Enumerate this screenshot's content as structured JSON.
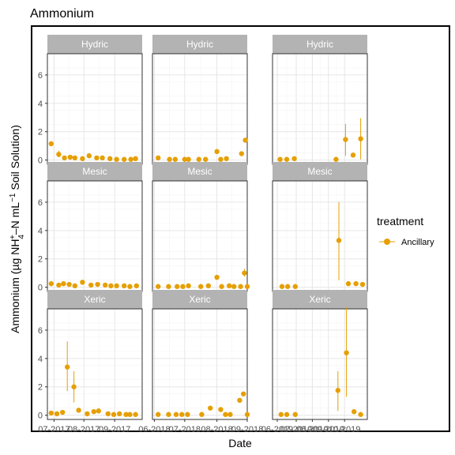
{
  "chart_data": {
    "type": "scatter",
    "title": "Ammonium",
    "xlabel": "Date",
    "ylabel": {
      "main": "Ammonium (µg NH",
      "sub": "4",
      "sup": "+",
      "mid": "–N mL",
      "sup2": "−1",
      "end": " Soil Solution)"
    },
    "ylim": [
      -0.3,
      7.5
    ],
    "yticks": [
      0,
      2,
      4,
      6
    ],
    "grid": true,
    "legend": {
      "title": "treatment",
      "position": "right",
      "entries": [
        "Ancillary"
      ]
    },
    "colors": {
      "series": "#E69F00",
      "strip": "#b3b3b3",
      "strip_text": "#ffffff",
      "grid": "#e6e6e6",
      "panel_border": "#333333"
    },
    "row_labels": [
      "Hydric",
      "Mesic",
      "Xeric"
    ],
    "columns": [
      {
        "xticks": [
          "07-2017",
          "08-2017",
          "09-2017"
        ],
        "xtick_pos": [
          0.07,
          0.385,
          0.71
        ]
      },
      {
        "xticks": [
          "06-2018",
          "07-2018",
          "08-2018",
          "09-2018"
        ],
        "xtick_pos": [
          0.02,
          0.34,
          0.68,
          1.0
        ]
      },
      {
        "xticks": [
          "06-2019",
          "07-2019",
          "08-2019",
          "09-2019",
          "10-2019"
        ],
        "xtick_pos": [
          0.05,
          0.25,
          0.42,
          0.59,
          0.76
        ]
      }
    ],
    "series": [
      {
        "name": "Ancillary",
        "panels": [
          {
            "row": 0,
            "col": 0,
            "points": [
              {
                "x": 0.04,
                "y": 1.15
              },
              {
                "x": 0.12,
                "y": 0.4,
                "lo": 0.2,
                "hi": 0.65
              },
              {
                "x": 0.18,
                "y": 0.15
              },
              {
                "x": 0.24,
                "y": 0.2
              },
              {
                "x": 0.29,
                "y": 0.15
              },
              {
                "x": 0.37,
                "y": 0.1
              },
              {
                "x": 0.44,
                "y": 0.3
              },
              {
                "x": 0.52,
                "y": 0.15
              },
              {
                "x": 0.58,
                "y": 0.15
              },
              {
                "x": 0.66,
                "y": 0.1
              },
              {
                "x": 0.73,
                "y": 0.05
              },
              {
                "x": 0.81,
                "y": 0.05
              },
              {
                "x": 0.88,
                "y": 0.05
              },
              {
                "x": 0.93,
                "y": 0.1
              }
            ]
          },
          {
            "row": 0,
            "col": 1,
            "points": [
              {
                "x": 0.06,
                "y": 0.15
              },
              {
                "x": 0.18,
                "y": 0.05
              },
              {
                "x": 0.24,
                "y": 0.05
              },
              {
                "x": 0.34,
                "y": 0.05
              },
              {
                "x": 0.38,
                "y": 0.05
              },
              {
                "x": 0.49,
                "y": 0.05
              },
              {
                "x": 0.56,
                "y": 0.05
              },
              {
                "x": 0.68,
                "y": 0.6
              },
              {
                "x": 0.72,
                "y": 0.05
              },
              {
                "x": 0.78,
                "y": 0.1
              },
              {
                "x": 0.94,
                "y": 0.45
              },
              {
                "x": 0.98,
                "y": 1.4
              }
            ]
          },
          {
            "row": 0,
            "col": 2,
            "points": [
              {
                "x": 0.08,
                "y": 0.05
              },
              {
                "x": 0.15,
                "y": 0.05
              },
              {
                "x": 0.23,
                "y": 0.1
              },
              {
                "x": 0.67,
                "y": 0.05
              },
              {
                "x": 0.77,
                "y": 1.45,
                "lo": 0.3,
                "hi": 2.55
              },
              {
                "x": 0.85,
                "y": 0.35
              },
              {
                "x": 0.93,
                "y": 1.5,
                "lo": 0.05,
                "hi": 2.95
              }
            ]
          },
          {
            "row": 1,
            "col": 0,
            "points": [
              {
                "x": 0.04,
                "y": 0.25
              },
              {
                "x": 0.12,
                "y": 0.15
              },
              {
                "x": 0.17,
                "y": 0.25
              },
              {
                "x": 0.23,
                "y": 0.2
              },
              {
                "x": 0.29,
                "y": 0.1
              },
              {
                "x": 0.37,
                "y": 0.35
              },
              {
                "x": 0.46,
                "y": 0.15
              },
              {
                "x": 0.53,
                "y": 0.2
              },
              {
                "x": 0.61,
                "y": 0.15
              },
              {
                "x": 0.67,
                "y": 0.1
              },
              {
                "x": 0.73,
                "y": 0.1
              },
              {
                "x": 0.81,
                "y": 0.1
              },
              {
                "x": 0.87,
                "y": 0.05
              },
              {
                "x": 0.94,
                "y": 0.1
              }
            ]
          },
          {
            "row": 1,
            "col": 1,
            "points": [
              {
                "x": 0.06,
                "y": 0.05
              },
              {
                "x": 0.17,
                "y": 0.05
              },
              {
                "x": 0.26,
                "y": 0.05
              },
              {
                "x": 0.32,
                "y": 0.05
              },
              {
                "x": 0.38,
                "y": 0.1
              },
              {
                "x": 0.51,
                "y": 0.05
              },
              {
                "x": 0.59,
                "y": 0.1
              },
              {
                "x": 0.68,
                "y": 0.7
              },
              {
                "x": 0.73,
                "y": 0.05
              },
              {
                "x": 0.81,
                "y": 0.1
              },
              {
                "x": 0.86,
                "y": 0.05
              },
              {
                "x": 0.93,
                "y": 0.05
              },
              {
                "x": 0.97,
                "y": 1.0,
                "lo": 0.75,
                "hi": 1.3
              },
              {
                "x": 1.0,
                "y": 0.05
              }
            ]
          },
          {
            "row": 1,
            "col": 2,
            "points": [
              {
                "x": 0.1,
                "y": 0.05
              },
              {
                "x": 0.16,
                "y": 0.05
              },
              {
                "x": 0.24,
                "y": 0.05
              },
              {
                "x": 0.7,
                "y": 3.3,
                "lo": 0.5,
                "hi": 6.0
              },
              {
                "x": 0.8,
                "y": 0.25
              },
              {
                "x": 0.88,
                "y": 0.25
              },
              {
                "x": 0.95,
                "y": 0.2
              }
            ]
          },
          {
            "row": 2,
            "col": 0,
            "points": [
              {
                "x": 0.04,
                "y": 0.15
              },
              {
                "x": 0.1,
                "y": 0.1
              },
              {
                "x": 0.16,
                "y": 0.2
              },
              {
                "x": 0.21,
                "y": 3.4,
                "lo": 1.7,
                "hi": 5.2
              },
              {
                "x": 0.28,
                "y": 2.0,
                "lo": 0.9,
                "hi": 3.1
              },
              {
                "x": 0.33,
                "y": 0.35
              },
              {
                "x": 0.42,
                "y": 0.1
              },
              {
                "x": 0.49,
                "y": 0.25
              },
              {
                "x": 0.54,
                "y": 0.3
              },
              {
                "x": 0.64,
                "y": 0.1
              },
              {
                "x": 0.7,
                "y": 0.05
              },
              {
                "x": 0.76,
                "y": 0.1
              },
              {
                "x": 0.83,
                "y": 0.05
              },
              {
                "x": 0.87,
                "y": 0.05
              },
              {
                "x": 0.93,
                "y": 0.05
              }
            ]
          },
          {
            "row": 2,
            "col": 1,
            "points": [
              {
                "x": 0.06,
                "y": 0.05
              },
              {
                "x": 0.17,
                "y": 0.05
              },
              {
                "x": 0.25,
                "y": 0.05
              },
              {
                "x": 0.31,
                "y": 0.05
              },
              {
                "x": 0.37,
                "y": 0.05
              },
              {
                "x": 0.52,
                "y": 0.05
              },
              {
                "x": 0.61,
                "y": 0.5
              },
              {
                "x": 0.72,
                "y": 0.4
              },
              {
                "x": 0.77,
                "y": 0.05
              },
              {
                "x": 0.82,
                "y": 0.05
              },
              {
                "x": 0.92,
                "y": 1.05
              },
              {
                "x": 0.96,
                "y": 1.5
              },
              {
                "x": 1.0,
                "y": 0.05
              }
            ]
          },
          {
            "row": 2,
            "col": 2,
            "points": [
              {
                "x": 0.09,
                "y": 0.05
              },
              {
                "x": 0.15,
                "y": 0.05
              },
              {
                "x": 0.24,
                "y": 0.05
              },
              {
                "x": 0.69,
                "y": 1.75,
                "lo": 0.3,
                "hi": 3.1
              },
              {
                "x": 0.78,
                "y": 4.4,
                "lo": 1.3,
                "hi": 7.6
              },
              {
                "x": 0.86,
                "y": 0.25
              },
              {
                "x": 0.93,
                "y": 0.05
              }
            ]
          }
        ]
      }
    ]
  }
}
